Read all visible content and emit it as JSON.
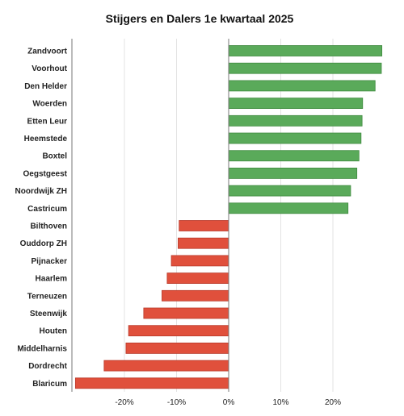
{
  "chart_data": {
    "type": "bar",
    "orientation": "horizontal",
    "title": "Stijgers en Dalers 1e kwartaal 2025",
    "xlabel": "",
    "ylabel": "",
    "categories": [
      "Zandvoort",
      "Voorhout",
      "Den Helder",
      "Woerden",
      "Etten Leur",
      "Heemstede",
      "Boxtel",
      "Oegstgeest",
      "Noordwijk ZH",
      "Castricum",
      "Bilthoven",
      "Ouddorp ZH",
      "Pijnacker",
      "Haarlem",
      "Terneuzen",
      "Steenwijk",
      "Houten",
      "Middelharnis",
      "Dordrecht",
      "Blaricum"
    ],
    "values": [
      29.4,
      29.3,
      28.1,
      25.7,
      25.6,
      25.4,
      25.0,
      24.6,
      23.4,
      22.9,
      -9.5,
      -9.7,
      -11.0,
      -11.8,
      -12.8,
      -16.3,
      -19.2,
      -19.7,
      -23.9,
      -29.4
    ],
    "xlim": [
      -30,
      30
    ],
    "xticks": [
      -20,
      -10,
      0,
      10,
      20
    ],
    "xtick_labels": [
      "-20%",
      "-10%",
      "0%",
      "10%",
      "20%"
    ],
    "grid": true,
    "colors": {
      "positive": "#5aaa5a",
      "positive_edge": "#3f8a3f",
      "negative": "#e0503c",
      "negative_edge": "#b8392a",
      "grid": "#e3e3e3",
      "axis": "#777777"
    }
  }
}
